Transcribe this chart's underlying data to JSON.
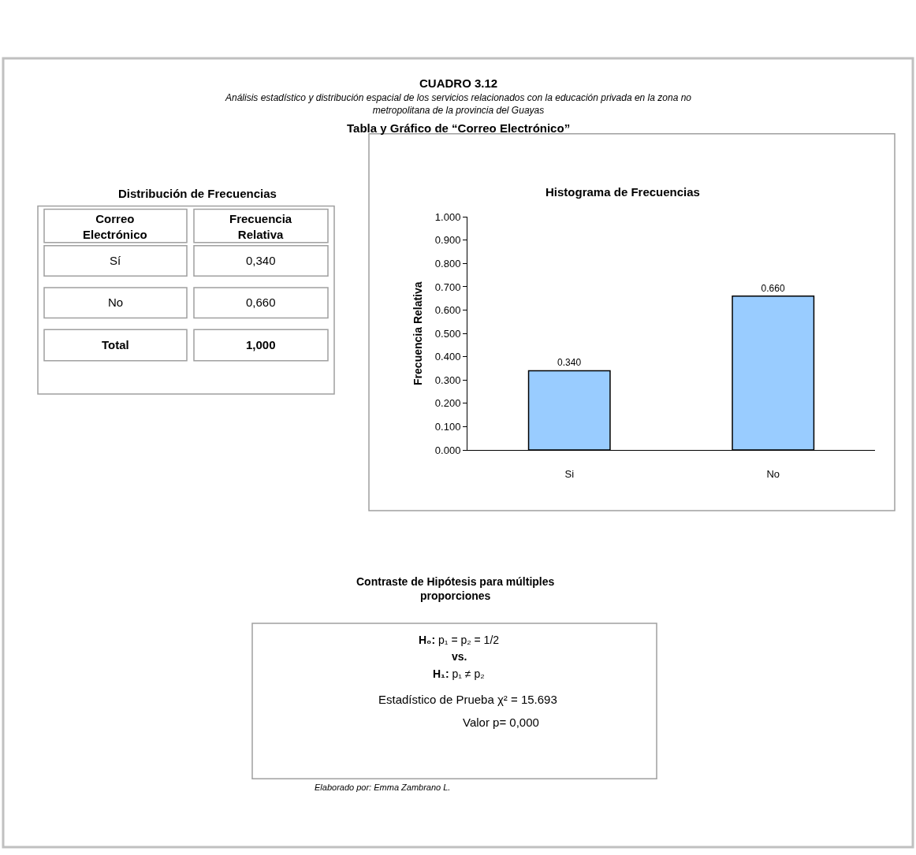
{
  "chart_data": {
    "type": "bar",
    "title": "Histograma de Frecuencias",
    "ylabel": "Frecuencia Relativa",
    "categories": [
      "Si",
      "No"
    ],
    "values": [
      0.34,
      0.66
    ],
    "value_labels": [
      "0.340",
      "0.660"
    ],
    "color": "#99ccff",
    "ylim": [
      0,
      1
    ],
    "yticks": [
      {
        "value": 0,
        "label": "0.000"
      },
      {
        "value": 0.1,
        "label": "0.100"
      },
      {
        "value": 0.2,
        "label": "0.200"
      },
      {
        "value": 0.3,
        "label": "0.300"
      },
      {
        "value": 0.4,
        "label": "0.400"
      },
      {
        "value": 0.5,
        "label": "0.500"
      },
      {
        "value": 0.6,
        "label": "0.600"
      },
      {
        "value": 0.7,
        "label": "0.700"
      },
      {
        "value": 0.8,
        "label": "0.800"
      },
      {
        "value": 0.9,
        "label": "0.900"
      },
      {
        "value": 1,
        "label": "1.000"
      }
    ],
    "annotations": [
      "CUADRO 3.12",
      "Análisis estadístico y distribución espacial de los servicios relacionados con la educación privada en la zona no metropolitana de la provincia del Guayas",
      "Tabla y Gráfico de “Correo Electrónico”",
      "Distribución de Frecuencias",
      "Correo Electrónico",
      "Frecuencia Relativa",
      "Sí",
      "0,340",
      "No",
      "0,660",
      "Total",
      "1,000",
      "Contraste de Hipótesis para múltiples proporciones",
      "H₀: p₁ = p₂ = 1/2",
      "vs.",
      "H₁: p₁ ≠ p₂",
      "Estadístico de Prueba χ² = 15.693",
      "Valor p= 0,000",
      "Elaborado por: Emma Zambrano L."
    ]
  }
}
